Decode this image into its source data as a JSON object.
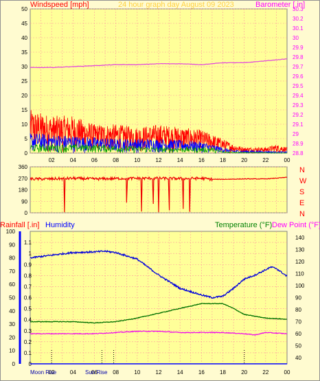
{
  "header": {
    "wind_title": "Windspeed [mph]",
    "graph_title": "24 hour graph day   August 09 2023",
    "baro_title": "Barometer [.in]",
    "rain_title": "Rainfall [.in]",
    "humidity_title": "Humidity",
    "temp_title": "Temperature (°F)",
    "dew_title": "Dew Point (°F)"
  },
  "colors": {
    "background": "#fffbd0",
    "frame": "#909090",
    "grid": "#ff9b9b",
    "wind": "#ff0000",
    "wind_avg": "#0000ff",
    "wind_low": "#00a000",
    "barometer": "#e040e0",
    "direction": "#ee0000",
    "humidity": "#0000dd",
    "temperature": "#007000",
    "dewpoint": "#ee00ee",
    "rain": "#0000ff",
    "wind_text": "#ff0000",
    "baro_text": "#ff00ff",
    "title_text": "#ffd040",
    "rain_text": "#ff0000",
    "humidity_text": "#0000ff",
    "temp_text": "#008000",
    "dew_text": "#ff00ff"
  },
  "chart_data": [
    {
      "id": "wind_barometer",
      "type": "line",
      "x_ticks": [
        "02",
        "04",
        "06",
        "08",
        "10",
        "12",
        "14",
        "16",
        "18",
        "20",
        "22",
        "00"
      ],
      "left_axis": {
        "ylim": [
          0,
          50
        ],
        "ticks": [
          "0",
          "5",
          "10",
          "15",
          "20",
          "25",
          "30",
          "35",
          "40",
          "45",
          "50"
        ]
      },
      "right_axis": {
        "ylim": [
          28.8,
          30.3
        ],
        "ticks": [
          "28.8",
          "28.9",
          "29",
          "29.1",
          "29.2",
          "29.3",
          "29.4",
          "29.5",
          "29.6",
          "29.7",
          "29.8",
          "29.9",
          "30",
          "30.1",
          "30.2",
          "30.3"
        ]
      },
      "barometer": {
        "x": [
          0,
          2,
          4,
          6,
          8,
          10,
          12,
          14,
          16,
          18,
          20,
          22,
          24
        ],
        "y": [
          29.69,
          29.69,
          29.7,
          29.71,
          29.72,
          29.72,
          29.73,
          29.73,
          29.72,
          29.74,
          29.74,
          29.76,
          29.78
        ]
      },
      "wind_gust_envelope": {
        "x": [
          0,
          2,
          4,
          6,
          8,
          10,
          12,
          14,
          16,
          18,
          19,
          20,
          22,
          23,
          24
        ],
        "y": [
          15,
          13,
          13,
          10,
          10,
          9,
          10,
          9,
          8,
          5,
          3,
          2,
          2,
          3,
          2
        ]
      },
      "wind_avg_envelope": {
        "x": [
          0,
          4,
          8,
          12,
          16,
          18,
          19,
          24
        ],
        "y": [
          7,
          6,
          5,
          5,
          4,
          2,
          1,
          0.5
        ]
      },
      "wind_low_envelope": {
        "x": [
          0,
          6,
          12,
          17,
          18,
          24
        ],
        "y": [
          3,
          3,
          2,
          2,
          0.5,
          0
        ]
      }
    },
    {
      "id": "wind_direction",
      "type": "line",
      "x_ticks": [
        "02",
        "04",
        "06",
        "08",
        "10",
        "12",
        "14",
        "16",
        "18",
        "20",
        "22",
        "00"
      ],
      "ylim": [
        0,
        360
      ],
      "left_ticks": [
        "0",
        "90",
        "180",
        "270",
        "360"
      ],
      "compass": [
        "N",
        "W",
        "S",
        "E",
        "N"
      ],
      "direction": {
        "x": [
          0,
          2,
          4,
          6,
          8,
          10,
          12,
          14,
          16,
          17,
          18,
          20,
          22,
          24
        ],
        "y": [
          265,
          265,
          270,
          265,
          268,
          270,
          270,
          268,
          270,
          262,
          262,
          265,
          265,
          278
        ]
      },
      "drops": [
        {
          "x": 3.2,
          "y": 5
        },
        {
          "x": 9.0,
          "y": 80
        },
        {
          "x": 10.4,
          "y": 10
        },
        {
          "x": 11.5,
          "y": 70
        },
        {
          "x": 12.0,
          "y": 5
        },
        {
          "x": 13.0,
          "y": 20
        },
        {
          "x": 14.3,
          "y": 30
        },
        {
          "x": 14.9,
          "y": 8
        }
      ]
    },
    {
      "id": "temp_humidity",
      "type": "line",
      "x_ticks": [
        "02",
        "04",
        "06",
        "08",
        "10",
        "12",
        "14",
        "16",
        "18",
        "20",
        "22",
        "00"
      ],
      "humidity_axis": {
        "ylim": [
          0,
          100
        ],
        "ticks": [
          "0",
          "10",
          "20",
          "30",
          "40",
          "50",
          "60",
          "70",
          "80",
          "90",
          "100"
        ]
      },
      "rain_axis": {
        "ylim": [
          0,
          1.2
        ],
        "ticks": [
          "0",
          "0.1",
          "0.2",
          "0.3",
          "0.4",
          "0.5",
          "0.6",
          "0.7",
          "0.8",
          "0.9",
          "1",
          "1.1"
        ]
      },
      "temp_axis": {
        "ylim": [
          35,
          145
        ],
        "ticks": [
          "40",
          "50",
          "60",
          "70",
          "80",
          "90",
          "100",
          "110",
          "120",
          "130",
          "140"
        ]
      },
      "humidity": {
        "x": [
          0,
          2,
          4,
          6,
          7,
          8,
          10,
          12,
          14,
          16,
          17,
          18,
          19,
          20,
          21,
          22,
          22.5,
          23,
          24
        ],
        "y": [
          80,
          82,
          84,
          84.5,
          85,
          84,
          79,
          67,
          57,
          52,
          50,
          51,
          57,
          64,
          67,
          71,
          73,
          72,
          66
        ]
      },
      "temperature": {
        "x": [
          0,
          2,
          4,
          6,
          8,
          10,
          12,
          14,
          16,
          18,
          19,
          20,
          22,
          24
        ],
        "y": [
          70,
          70,
          70,
          69,
          70,
          73,
          77,
          81,
          85,
          85,
          81,
          76,
          73,
          72
        ]
      },
      "dewpoint": {
        "x": [
          0,
          2,
          4,
          6,
          8,
          10,
          12,
          14,
          16,
          18,
          20,
          21,
          22,
          24
        ],
        "y": [
          60,
          60,
          60,
          60,
          61,
          62,
          62,
          61,
          61,
          61,
          60,
          59,
          61,
          60
        ]
      },
      "rainfall": {
        "x": [
          0,
          24
        ],
        "y": [
          0,
          0
        ]
      }
    }
  ],
  "bottom_labels": {
    "moon_rise": "Moon Rise",
    "sun_rise": "Sun Rise",
    "hours": [
      "02",
      "04",
      "06",
      "08",
      "10",
      "12",
      "14",
      "16",
      "18",
      "20",
      "22",
      "00"
    ]
  }
}
